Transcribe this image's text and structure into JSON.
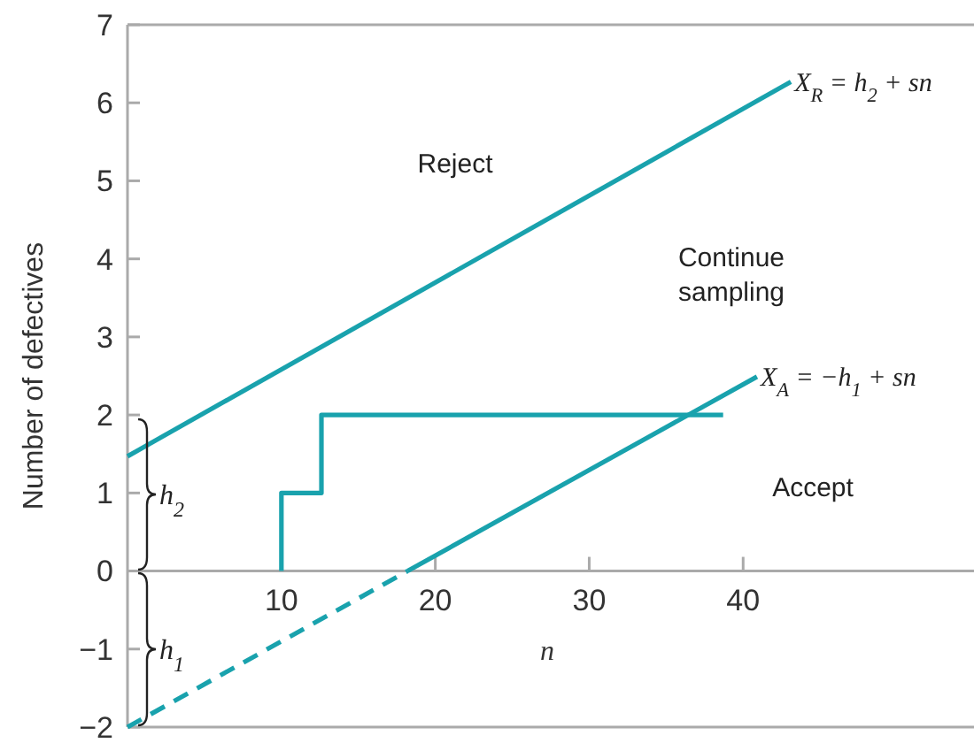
{
  "chart_data": {
    "type": "line",
    "xlabel": "n",
    "ylabel": "Number of defectives",
    "xlim": [
      0,
      55
    ],
    "ylim": [
      -2,
      7
    ],
    "xticks": [
      10,
      20,
      30,
      40
    ],
    "yticks": [
      {
        "value": -2,
        "label": "−2"
      },
      {
        "value": -1,
        "label": "−1"
      },
      0,
      1,
      2,
      3,
      4,
      5,
      6,
      7
    ],
    "grid": false,
    "marker": "none",
    "series": [
      {
        "color": "#19a2ad",
        "x": [
          0,
          43.1
        ],
        "values": [
          1.47,
          6.27
        ],
        "line_style": "solid"
      },
      {
        "color": "#19a2ad",
        "x": [
          0,
          18.2
        ],
        "values": [
          -2,
          0
        ],
        "line_style": "dashed"
      },
      {
        "color": "#19a2ad",
        "x": [
          18.2,
          40.9
        ],
        "values": [
          0,
          2.49
        ],
        "line_style": "solid"
      },
      {
        "color": "#19a2ad",
        "x": [
          10,
          10,
          12.6,
          12.6,
          38.7
        ],
        "values": [
          0,
          1,
          1,
          2,
          2
        ],
        "line_style": "solid"
      }
    ],
    "annotations": [
      "Reject",
      "Continue sampling",
      "Accept",
      "h$_{2}$",
      "h$_{1}$",
      {
        "text": "X$_{R}$ = h$_{2}$ + sn",
        "x": 43.1,
        "y": 6.27
      },
      {
        "text": "X$_{A}$ = −h$_{1}$ + sn",
        "x": 40.9,
        "y": 2.49
      }
    ]
  }
}
